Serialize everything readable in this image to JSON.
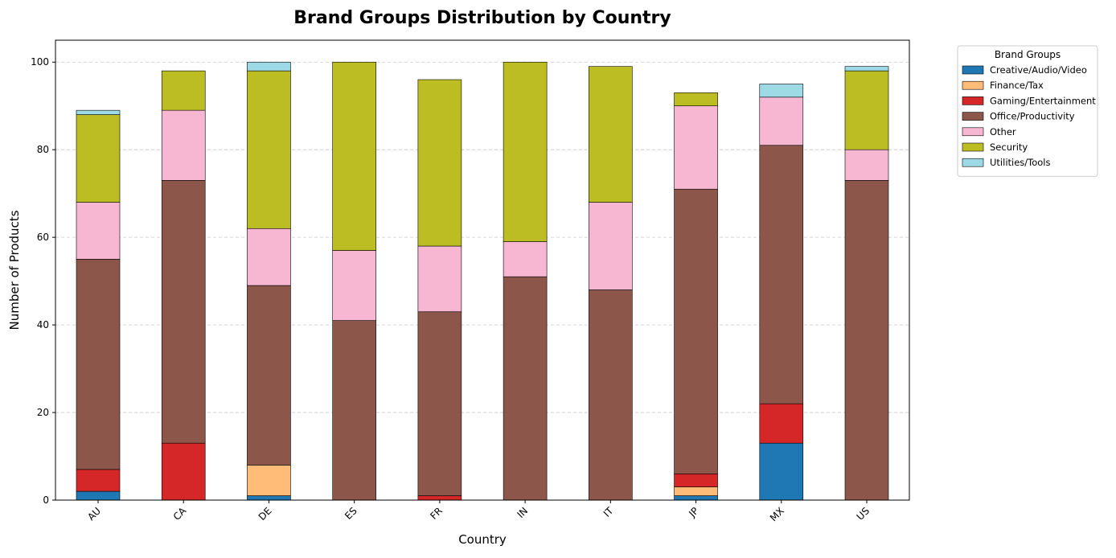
{
  "chart_data": {
    "type": "bar",
    "stacked": true,
    "title": "Brand Groups Distribution by Country",
    "xlabel": "Country",
    "ylabel": "Number of Products",
    "categories": [
      "AU",
      "CA",
      "DE",
      "ES",
      "FR",
      "IN",
      "IT",
      "JP",
      "MX",
      "US"
    ],
    "ylim": [
      0,
      105
    ],
    "yticks": [
      0,
      20,
      40,
      60,
      80,
      100
    ],
    "grid": "y-dashed",
    "legend": {
      "title": "Brand Groups",
      "placement": "outside-top-right"
    },
    "series": [
      {
        "name": "Creative/Audio/Video",
        "color": "#1f77b4",
        "values": [
          2,
          0,
          1,
          0,
          0,
          0,
          0,
          1,
          13,
          0
        ]
      },
      {
        "name": "Finance/Tax",
        "color": "#ffbb78",
        "values": [
          0,
          0,
          7,
          0,
          0,
          0,
          0,
          2,
          0,
          0
        ]
      },
      {
        "name": "Gaming/Entertainment",
        "color": "#d62728",
        "values": [
          5,
          13,
          0,
          0,
          1,
          0,
          0,
          3,
          9,
          0
        ]
      },
      {
        "name": "Office/Productivity",
        "color": "#8c564b",
        "values": [
          48,
          60,
          41,
          41,
          42,
          51,
          48,
          65,
          59,
          73
        ]
      },
      {
        "name": "Other",
        "color": "#f7b6d2",
        "values": [
          13,
          16,
          13,
          16,
          15,
          8,
          20,
          19,
          11,
          7
        ]
      },
      {
        "name": "Security",
        "color": "#bcbd22",
        "values": [
          20,
          9,
          36,
          43,
          38,
          41,
          31,
          3,
          0,
          18
        ]
      },
      {
        "name": "Utilities/Tools",
        "color": "#9edae5",
        "values": [
          1,
          0,
          2,
          0,
          0,
          0,
          0,
          0,
          3,
          1
        ]
      }
    ]
  }
}
